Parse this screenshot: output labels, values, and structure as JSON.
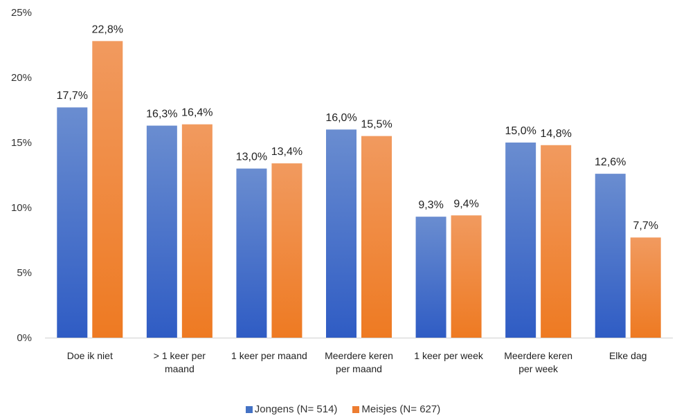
{
  "chart_data": {
    "type": "bar",
    "categories": [
      [
        "Doe ik niet"
      ],
      [
        "> 1 keer per",
        "maand"
      ],
      [
        "1 keer per maand"
      ],
      [
        "Meerdere keren",
        "per maand"
      ],
      [
        "1 keer per week"
      ],
      [
        "Meerdere keren",
        "per week"
      ],
      [
        "Elke dag"
      ]
    ],
    "series": [
      {
        "name": "Jongens (N= 514)",
        "color": "#4472C4",
        "values": [
          17.7,
          16.3,
          13.0,
          16.0,
          9.3,
          15.0,
          12.6
        ],
        "labels": [
          "17,7%",
          "16,3%",
          "13,0%",
          "16,0%",
          "9,3%",
          "15,0%",
          "12,6%"
        ]
      },
      {
        "name": "Meisjes (N= 627)",
        "color": "#ED7D31",
        "values": [
          22.8,
          16.4,
          13.4,
          15.5,
          9.4,
          14.8,
          7.7
        ],
        "labels": [
          "22,8%",
          "16,4%",
          "13,4%",
          "15,5%",
          "9,4%",
          "14,8%",
          "7,7%"
        ]
      }
    ],
    "ylim": [
      0,
      25
    ],
    "yticks": [
      0,
      5,
      10,
      15,
      20,
      25
    ],
    "ytick_labels": [
      "0%",
      "5%",
      "10%",
      "15%",
      "20%",
      "25%"
    ],
    "grid": false,
    "legend_position": "bottom",
    "title": "",
    "xlabel": "",
    "ylabel": ""
  }
}
